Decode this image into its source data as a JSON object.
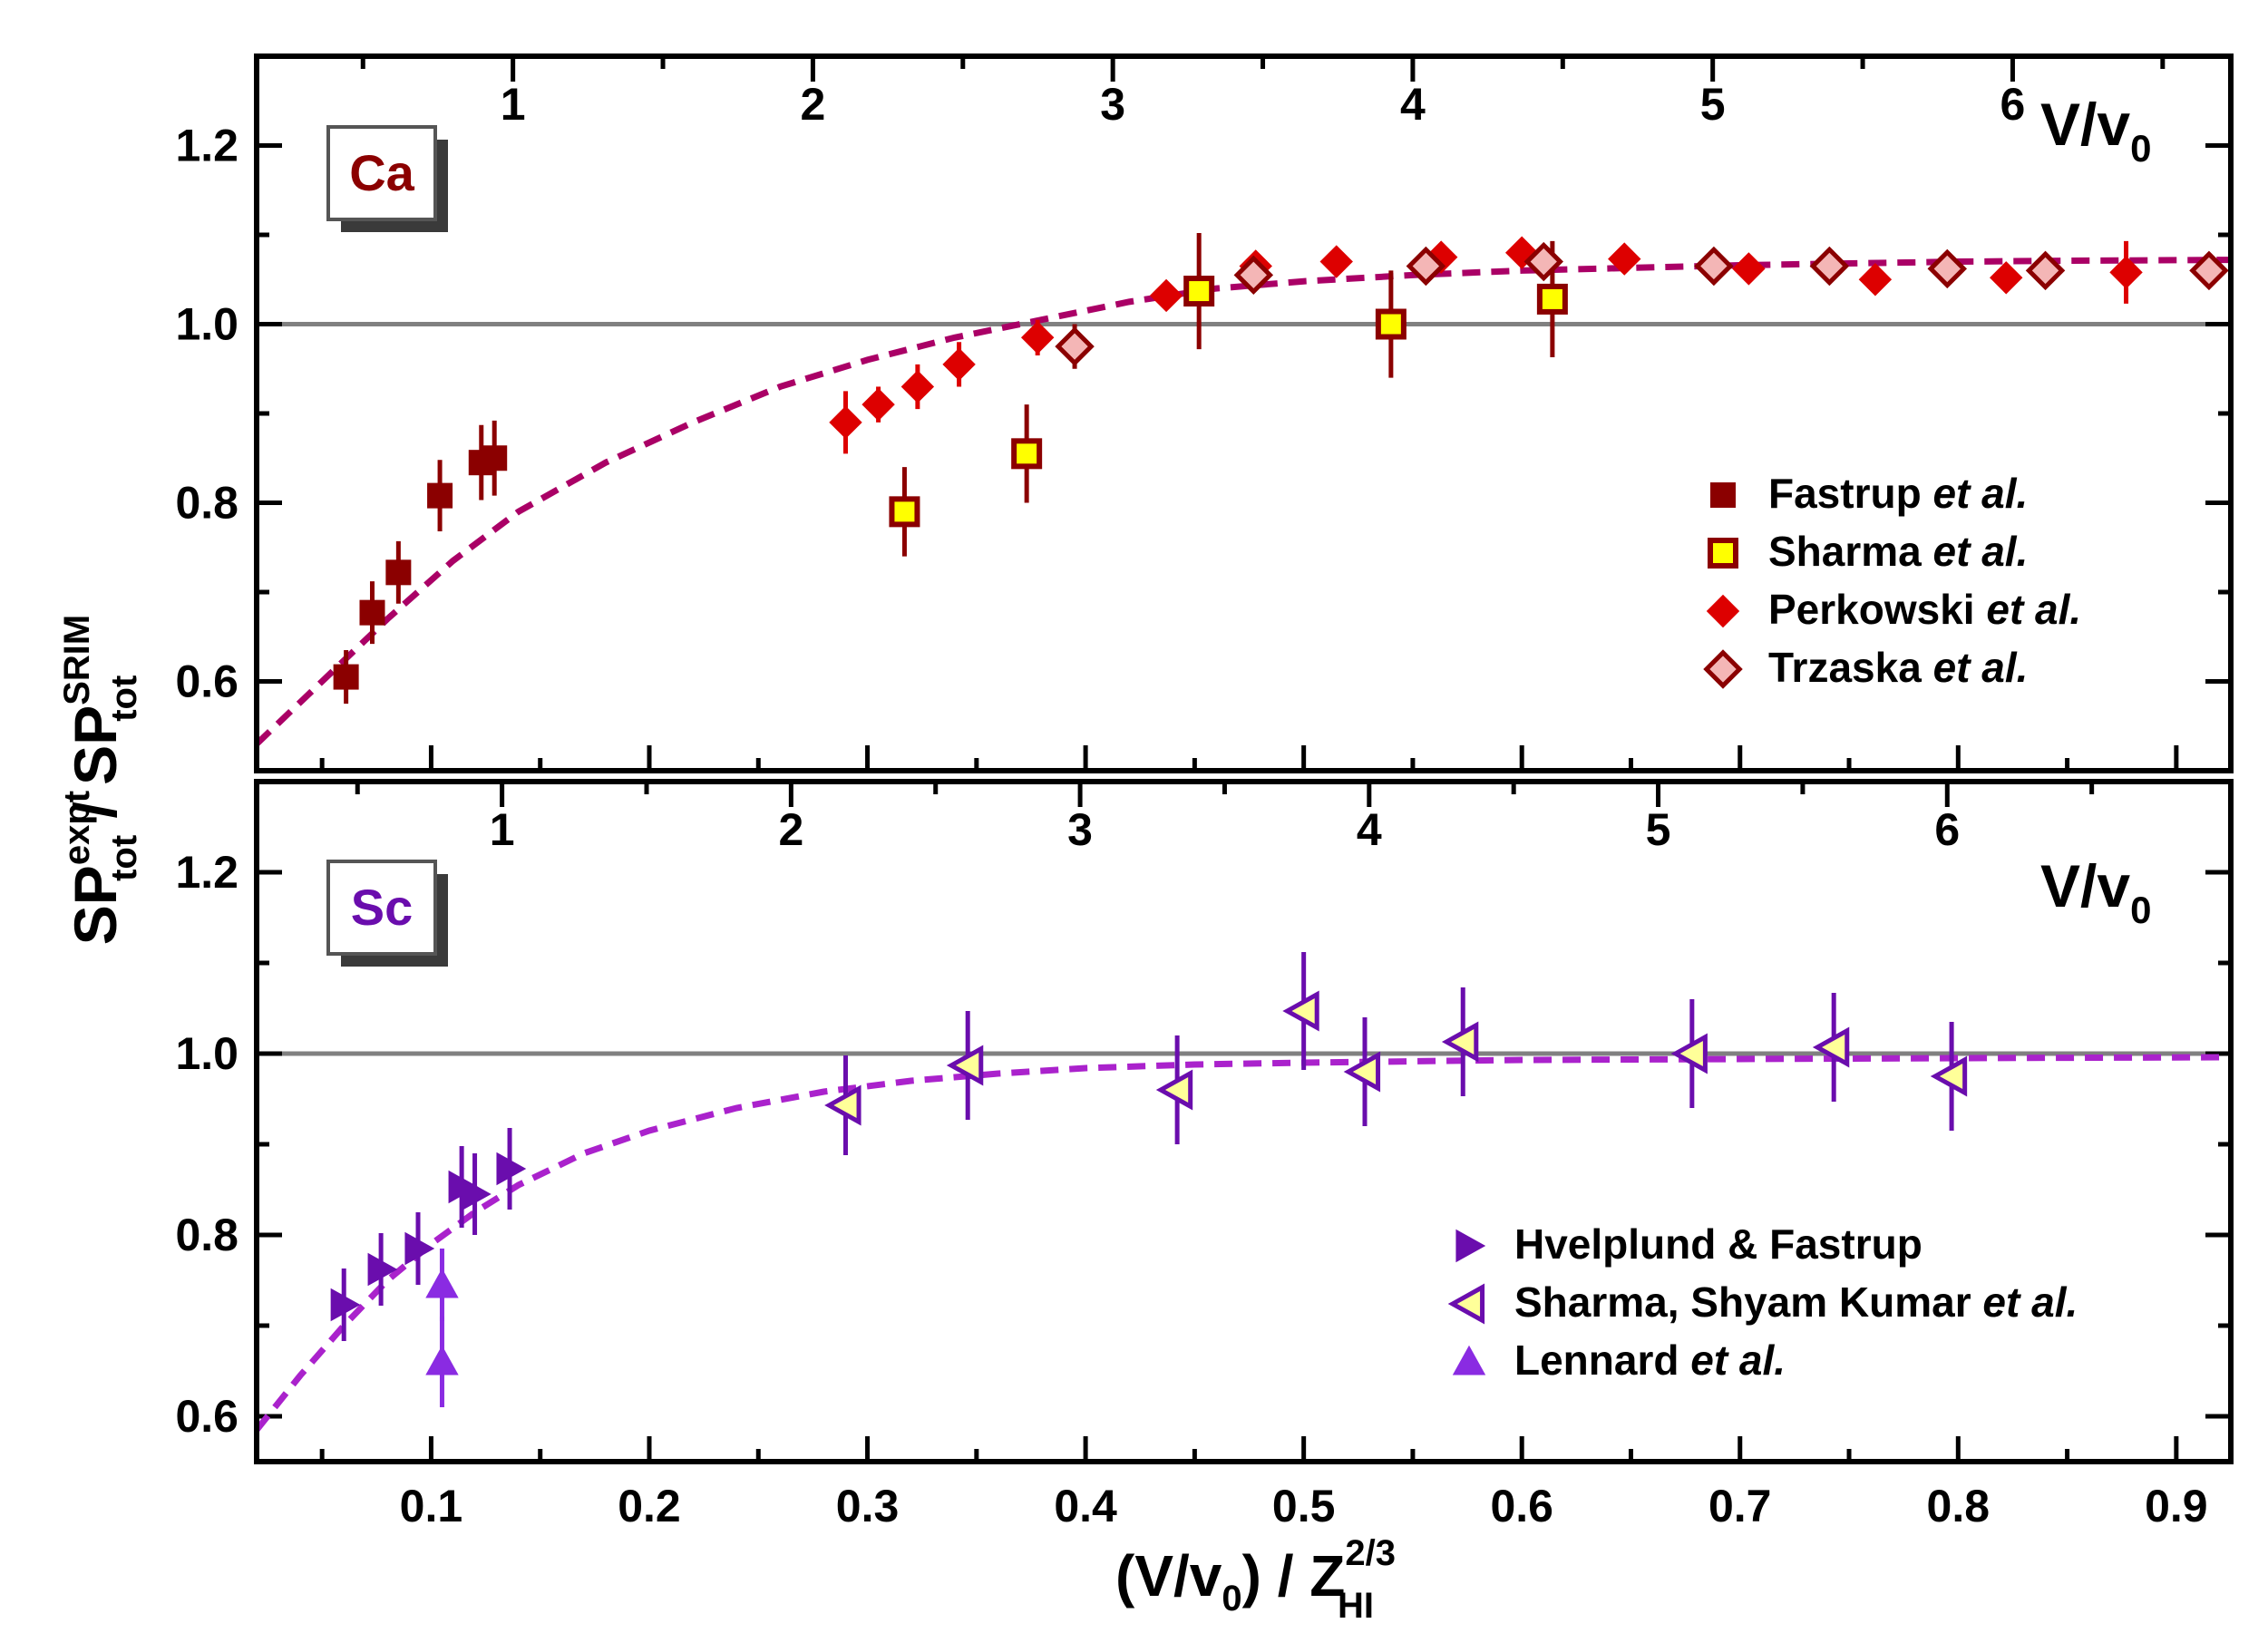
{
  "title": "",
  "y_axis_label": {
    "main": "SP",
    "num_sup": "expt",
    "num_sub": "tot",
    "sep": " / ",
    "den_main": "SP",
    "den_sup": "SRIM",
    "den_sub": "tot"
  },
  "x_axis_label": {
    "pre": "(V/v",
    "sub0": "0",
    "mid": ") / Z",
    "sup": "2/3",
    "sub": "HI"
  },
  "top_axis_label": {
    "main": "V/v",
    "sub": "0"
  },
  "colors": {
    "fastrup": "#8b0000",
    "sharma": "#ffff00",
    "sharma_edge": "#8b0000",
    "perkowski": "#dd0000",
    "trzaska": "#f4b6b6",
    "trzaska_edge": "#8b0000",
    "ca_fit": "#aa0066",
    "hvelplund": "#6a0dad",
    "sharma_sc": "#ffff99",
    "sharma_sc_edge": "#6a0dad",
    "lennard": "#8a2be2",
    "sc_fit": "#aa22cc"
  },
  "chart_data": [
    {
      "type": "scatter",
      "panel": "top",
      "element_label": "Ca",
      "xlabel": "(V/v0) / Z_HI^(2/3)",
      "ylabel": "SP_tot^expt / SP_tot^SRIM",
      "xlim": [
        0.02,
        0.925
      ],
      "ylim": [
        0.5,
        1.3
      ],
      "xticks": [
        0.1,
        0.2,
        0.3,
        0.4,
        0.5,
        0.6,
        0.7,
        0.8,
        0.9
      ],
      "yticks": [
        0.6,
        0.8,
        1.0,
        1.2
      ],
      "ytick_labels": [
        "0.6",
        "0.8",
        "1.0",
        "1.2"
      ],
      "top_axis": {
        "label": "V/v0",
        "ticks": [
          1,
          2,
          3,
          4,
          5,
          6
        ],
        "tick_labels": [
          "1",
          "2",
          "3",
          "4",
          "5",
          "6"
        ],
        "x_per_unit": 0.1375
      },
      "reference_line": 1.0,
      "legend_position": "lower-right",
      "series": [
        {
          "name": "Fastrup",
          "suffix": "et al.",
          "marker": "square",
          "color_key": "fastrup",
          "points": [
            {
              "x": 0.061,
              "y": 0.605,
              "err": 0.03
            },
            {
              "x": 0.073,
              "y": 0.677,
              "err": 0.035
            },
            {
              "x": 0.085,
              "y": 0.722,
              "err": 0.035
            },
            {
              "x": 0.104,
              "y": 0.808,
              "err": 0.04
            },
            {
              "x": 0.123,
              "y": 0.845,
              "err": 0.042
            },
            {
              "x": 0.129,
              "y": 0.85,
              "err": 0.042
            }
          ]
        },
        {
          "name": "Sharma",
          "suffix": "et al.",
          "marker": "square-open",
          "color_key": "sharma",
          "edge_key": "sharma_edge",
          "points": [
            {
              "x": 0.317,
              "y": 0.79,
              "err": 0.05
            },
            {
              "x": 0.373,
              "y": 0.855,
              "err": 0.055
            },
            {
              "x": 0.452,
              "y": 1.037,
              "err": 0.065
            },
            {
              "x": 0.54,
              "y": 1.0,
              "err": 0.06
            },
            {
              "x": 0.614,
              "y": 1.028,
              "err": 0.065
            }
          ]
        },
        {
          "name": "Perkowski",
          "suffix": "et al.",
          "marker": "diamond",
          "color_key": "perkowski",
          "points": [
            {
              "x": 0.29,
              "y": 0.89,
              "err": 0.035
            },
            {
              "x": 0.305,
              "y": 0.91,
              "err": 0.02
            },
            {
              "x": 0.323,
              "y": 0.93,
              "err": 0.025
            },
            {
              "x": 0.342,
              "y": 0.955,
              "err": 0.025
            },
            {
              "x": 0.378,
              "y": 0.985,
              "err": 0.02
            },
            {
              "x": 0.437,
              "y": 1.032,
              "err": 0.01
            },
            {
              "x": 0.478,
              "y": 1.065,
              "err": 0.01
            },
            {
              "x": 0.515,
              "y": 1.07,
              "err": 0.01
            },
            {
              "x": 0.563,
              "y": 1.075,
              "err": 0.01
            },
            {
              "x": 0.6,
              "y": 1.08,
              "err": 0.01
            },
            {
              "x": 0.647,
              "y": 1.073,
              "err": 0.01
            },
            {
              "x": 0.704,
              "y": 1.062,
              "err": 0.01
            },
            {
              "x": 0.762,
              "y": 1.05,
              "err": 0.01
            },
            {
              "x": 0.822,
              "y": 1.052,
              "err": 0.01
            },
            {
              "x": 0.877,
              "y": 1.058,
              "err": 0.035
            }
          ]
        },
        {
          "name": "Trzaska",
          "suffix": "et al.",
          "marker": "diamond-open",
          "color_key": "trzaska",
          "edge_key": "trzaska_edge",
          "points": [
            {
              "x": 0.395,
              "y": 0.975,
              "err": 0.025
            },
            {
              "x": 0.477,
              "y": 1.055,
              "err": 0.015
            },
            {
              "x": 0.556,
              "y": 1.065,
              "err": 0.015
            },
            {
              "x": 0.61,
              "y": 1.07,
              "err": 0.015
            },
            {
              "x": 0.688,
              "y": 1.065,
              "err": 0.01
            },
            {
              "x": 0.741,
              "y": 1.065,
              "err": 0.01
            },
            {
              "x": 0.795,
              "y": 1.062,
              "err": 0.01
            },
            {
              "x": 0.84,
              "y": 1.06,
              "err": 0.01
            },
            {
              "x": 0.915,
              "y": 1.06,
              "err": 0.01
            }
          ]
        }
      ],
      "fit": {
        "style": "dashed",
        "color_key": "ca_fit",
        "points": [
          [
            0.02,
            0.53
          ],
          [
            0.05,
            0.6
          ],
          [
            0.08,
            0.67
          ],
          [
            0.11,
            0.735
          ],
          [
            0.14,
            0.79
          ],
          [
            0.18,
            0.845
          ],
          [
            0.22,
            0.89
          ],
          [
            0.26,
            0.93
          ],
          [
            0.3,
            0.96
          ],
          [
            0.34,
            0.985
          ],
          [
            0.38,
            1.005
          ],
          [
            0.42,
            1.025
          ],
          [
            0.46,
            1.04
          ],
          [
            0.5,
            1.048
          ],
          [
            0.55,
            1.055
          ],
          [
            0.6,
            1.06
          ],
          [
            0.65,
            1.063
          ],
          [
            0.7,
            1.066
          ],
          [
            0.75,
            1.068
          ],
          [
            0.8,
            1.07
          ],
          [
            0.85,
            1.071
          ],
          [
            0.925,
            1.072
          ]
        ]
      }
    },
    {
      "type": "scatter",
      "panel": "bottom",
      "element_label": "Sc",
      "xlabel": "(V/v0) / Z_HI^(2/3)",
      "ylabel": "SP_tot^expt / SP_tot^SRIM",
      "xlim": [
        0.02,
        0.925
      ],
      "ylim": [
        0.55,
        1.3
      ],
      "xticks": [
        0.1,
        0.2,
        0.3,
        0.4,
        0.5,
        0.6,
        0.7,
        0.8,
        0.9
      ],
      "xtick_labels": [
        "0.1",
        "0.2",
        "0.3",
        "0.4",
        "0.5",
        "0.6",
        "0.7",
        "0.8",
        "0.9"
      ],
      "yticks": [
        0.6,
        0.8,
        1.0,
        1.2
      ],
      "ytick_labels": [
        "0.6",
        "0.8",
        "1.0",
        "1.2"
      ],
      "top_axis": {
        "label": "V/v0",
        "ticks": [
          1,
          2,
          3,
          4,
          5,
          6
        ],
        "tick_labels": [
          "1",
          "2",
          "3",
          "4",
          "5",
          "6"
        ],
        "x_per_unit": 0.1325
      },
      "reference_line": 1.0,
      "legend_position": "lower-right",
      "series": [
        {
          "name": "Hvelplund & Fastrup",
          "suffix": "",
          "marker": "triangle-right",
          "color_key": "hvelplund",
          "points": [
            {
              "x": 0.06,
              "y": 0.723,
              "err": 0.04
            },
            {
              "x": 0.077,
              "y": 0.762,
              "err": 0.04
            },
            {
              "x": 0.094,
              "y": 0.785,
              "err": 0.04
            },
            {
              "x": 0.114,
              "y": 0.853,
              "err": 0.045
            },
            {
              "x": 0.12,
              "y": 0.845,
              "err": 0.045
            },
            {
              "x": 0.136,
              "y": 0.873,
              "err": 0.045
            }
          ]
        },
        {
          "name": "Sharma, Shyam Kumar",
          "suffix": "et al.",
          "marker": "triangle-left-open",
          "color_key": "sharma_sc",
          "edge_key": "sharma_sc_edge",
          "points": [
            {
              "x": 0.29,
              "y": 0.943,
              "err": 0.055
            },
            {
              "x": 0.346,
              "y": 0.987,
              "err": 0.06
            },
            {
              "x": 0.442,
              "y": 0.96,
              "err": 0.06
            },
            {
              "x": 0.5,
              "y": 1.047,
              "err": 0.065
            },
            {
              "x": 0.528,
              "y": 0.98,
              "err": 0.06
            },
            {
              "x": 0.573,
              "y": 1.013,
              "err": 0.06
            },
            {
              "x": 0.678,
              "y": 1.0,
              "err": 0.06
            },
            {
              "x": 0.743,
              "y": 1.007,
              "err": 0.06
            },
            {
              "x": 0.797,
              "y": 0.975,
              "err": 0.06
            }
          ]
        },
        {
          "name": "Lennard",
          "suffix": "et al.",
          "marker": "triangle-up",
          "color_key": "lennard",
          "points": [
            {
              "x": 0.105,
              "y": 0.745,
              "err": 0.04
            },
            {
              "x": 0.105,
              "y": 0.66,
              "err": 0.05
            }
          ]
        }
      ],
      "fit": {
        "style": "dashed",
        "color_key": "sc_fit",
        "points": [
          [
            0.02,
            0.585
          ],
          [
            0.04,
            0.645
          ],
          [
            0.06,
            0.7
          ],
          [
            0.08,
            0.75
          ],
          [
            0.1,
            0.79
          ],
          [
            0.12,
            0.825
          ],
          [
            0.14,
            0.855
          ],
          [
            0.17,
            0.89
          ],
          [
            0.2,
            0.915
          ],
          [
            0.24,
            0.94
          ],
          [
            0.28,
            0.958
          ],
          [
            0.32,
            0.97
          ],
          [
            0.36,
            0.978
          ],
          [
            0.4,
            0.984
          ],
          [
            0.45,
            0.988
          ],
          [
            0.5,
            0.99
          ],
          [
            0.6,
            0.993
          ],
          [
            0.7,
            0.994
          ],
          [
            0.8,
            0.995
          ],
          [
            0.925,
            0.996
          ]
        ]
      }
    }
  ]
}
